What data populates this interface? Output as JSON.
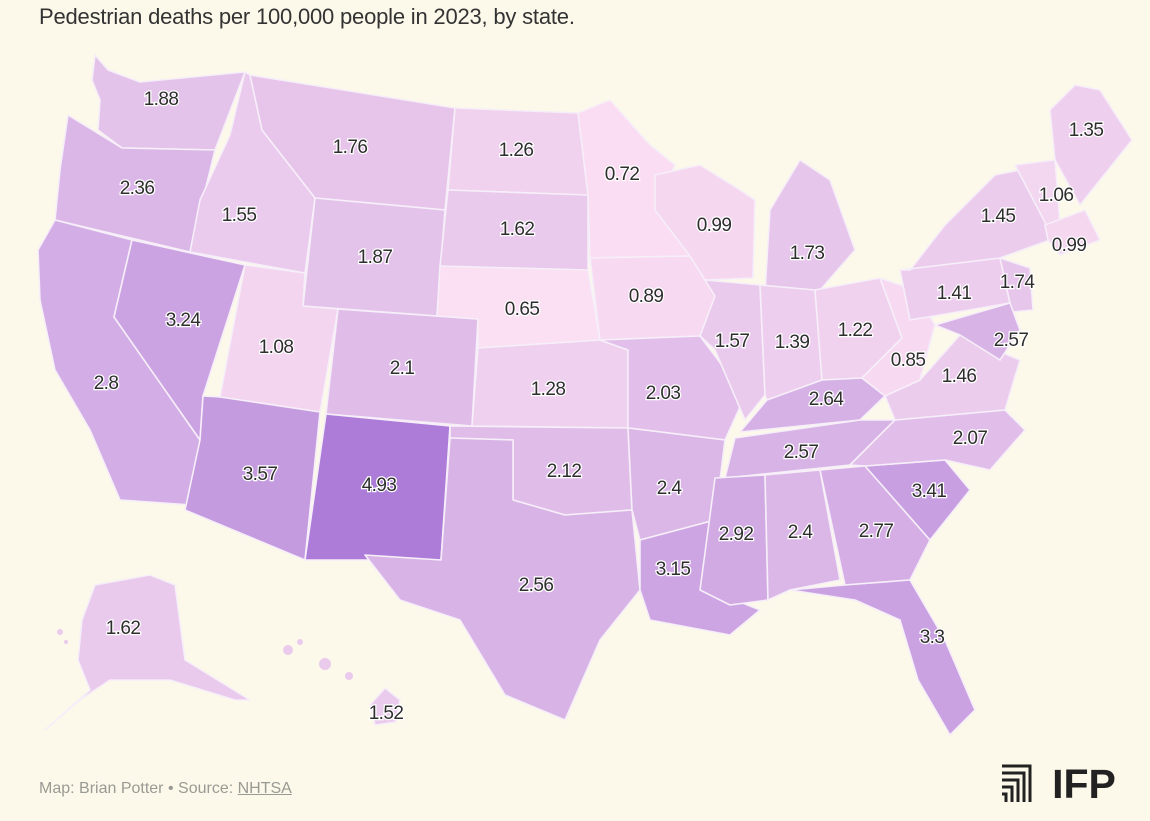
{
  "title": "Pedestrian deaths per 100,000 people in 2023, by state.",
  "footer": {
    "credit": "Map: Brian Potter",
    "separator": "•",
    "source_label": "Source:",
    "source_name": "NHTSA"
  },
  "logo_text": "IFP",
  "colors": {
    "background": "#fcf9ea",
    "low": "#fbdff2",
    "high": "#ac7cd8"
  },
  "chart_data": {
    "type": "choropleth",
    "title": "Pedestrian deaths per 100,000 people in 2023, by state.",
    "values": [
      {
        "state": "WA",
        "value": 1.88
      },
      {
        "state": "OR",
        "value": 2.36
      },
      {
        "state": "CA",
        "value": 2.8
      },
      {
        "state": "NV",
        "value": 3.24
      },
      {
        "state": "ID",
        "value": 1.55
      },
      {
        "state": "MT",
        "value": 1.76
      },
      {
        "state": "WY",
        "value": 1.87
      },
      {
        "state": "UT",
        "value": 1.08
      },
      {
        "state": "AZ",
        "value": 3.57
      },
      {
        "state": "CO",
        "value": 2.1
      },
      {
        "state": "NM",
        "value": 4.93
      },
      {
        "state": "ND",
        "value": 1.26
      },
      {
        "state": "SD",
        "value": 1.62
      },
      {
        "state": "NE",
        "value": 0.65
      },
      {
        "state": "KS",
        "value": 1.28
      },
      {
        "state": "OK",
        "value": 2.12
      },
      {
        "state": "TX",
        "value": 2.56
      },
      {
        "state": "MN",
        "value": 0.72
      },
      {
        "state": "IA",
        "value": 0.89
      },
      {
        "state": "MO",
        "value": 2.03
      },
      {
        "state": "AR",
        "value": 2.4
      },
      {
        "state": "LA",
        "value": 3.15
      },
      {
        "state": "WI",
        "value": 0.99
      },
      {
        "state": "IL",
        "value": 1.57
      },
      {
        "state": "MI",
        "value": 1.73
      },
      {
        "state": "IN",
        "value": 1.39
      },
      {
        "state": "OH",
        "value": 1.22
      },
      {
        "state": "KY",
        "value": 2.64
      },
      {
        "state": "TN",
        "value": 2.57
      },
      {
        "state": "MS",
        "value": 2.92
      },
      {
        "state": "AL",
        "value": 2.4
      },
      {
        "state": "GA",
        "value": 2.77
      },
      {
        "state": "FL",
        "value": 3.3
      },
      {
        "state": "SC",
        "value": 3.41
      },
      {
        "state": "NC",
        "value": 2.07
      },
      {
        "state": "VA",
        "value": 1.46
      },
      {
        "state": "WV",
        "value": 0.85
      },
      {
        "state": "PA",
        "value": 1.41
      },
      {
        "state": "NY",
        "value": 1.45
      },
      {
        "state": "NJ",
        "value": 1.74
      },
      {
        "state": "MD",
        "value": 2.57
      },
      {
        "state": "VT",
        "value": 1.06
      },
      {
        "state": "ME",
        "value": 1.35
      },
      {
        "state": "MA",
        "value": 0.99
      },
      {
        "state": "AK",
        "value": 1.62
      },
      {
        "state": "HI",
        "value": 1.52
      }
    ]
  }
}
